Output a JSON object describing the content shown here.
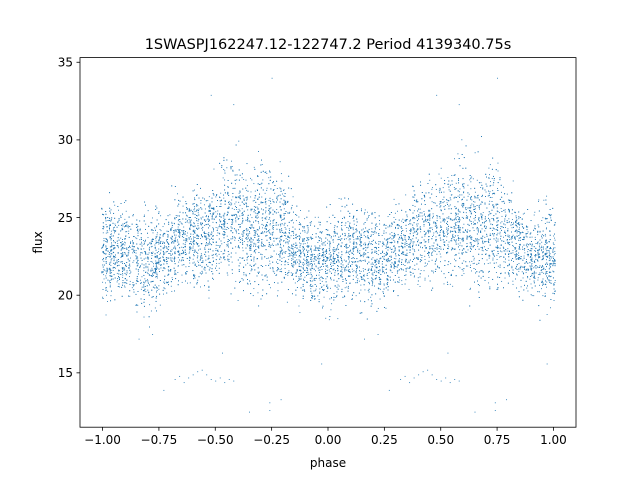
{
  "chart_data": {
    "type": "scatter",
    "title": "1SWASPJ162247.12-122747.2 Period 4139340.75s",
    "xlabel": "phase",
    "ylabel": "flux",
    "xlim": [
      -1.1,
      1.1
    ],
    "ylim": [
      11.5,
      35.3
    ],
    "x_ticks": [
      -1.0,
      -0.75,
      -0.5,
      -0.25,
      0.0,
      0.25,
      0.5,
      0.75,
      1.0
    ],
    "x_tick_labels": [
      "−1.00",
      "−0.75",
      "−0.50",
      "−0.25",
      "0.00",
      "0.25",
      "0.50",
      "0.75",
      "1.00"
    ],
    "y_ticks": [
      15,
      20,
      25,
      30,
      35
    ],
    "y_tick_labels": [
      "15",
      "20",
      "25",
      "30",
      "35"
    ],
    "grid": false,
    "marker_color": "#1f77b4",
    "series": [
      {
        "x": [
          -1.0,
          -0.95,
          -0.9,
          -0.85,
          -0.8,
          -0.75,
          -0.7,
          -0.65,
          -0.6,
          -0.55,
          -0.5,
          -0.45,
          -0.4,
          -0.35,
          -0.3,
          -0.25,
          -0.2,
          -0.15,
          -0.1,
          -0.05,
          0.0,
          0.05,
          0.1,
          0.15,
          0.2,
          0.25,
          0.3,
          0.35,
          0.4,
          0.45,
          0.5,
          0.55,
          0.6,
          0.65,
          0.7,
          0.75,
          0.8,
          0.85,
          0.9,
          0.95,
          1.0
        ],
        "y_median": [
          22.5,
          23.0,
          22.8,
          22.3,
          22.0,
          22.5,
          23.2,
          23.5,
          24.0,
          24.0,
          24.2,
          24.8,
          25.0,
          24.0,
          24.8,
          24.5,
          24.0,
          23.0,
          22.5,
          22.3,
          22.0,
          22.5,
          23.0,
          22.8,
          22.3,
          22.5,
          23.0,
          23.5,
          24.0,
          24.0,
          24.3,
          24.8,
          25.0,
          24.0,
          24.8,
          24.5,
          24.0,
          23.0,
          22.5,
          22.5,
          22.5
        ],
        "y_spread": [
          3.5,
          3.0,
          3.0,
          3.5,
          3.5,
          3.0,
          3.0,
          3.0,
          3.5,
          3.5,
          3.5,
          4.0,
          4.5,
          4.0,
          4.5,
          4.0,
          3.5,
          3.0,
          3.0,
          3.0,
          3.0,
          3.5,
          3.5,
          3.5,
          3.0,
          3.0,
          3.0,
          3.0,
          3.5,
          3.5,
          3.5,
          4.0,
          4.5,
          4.0,
          4.5,
          4.0,
          3.5,
          3.0,
          3.0,
          3.0,
          3.5
        ]
      }
    ],
    "outlier_points": [
      {
        "x": -0.68,
        "y": 14.6
      },
      {
        "x": -0.66,
        "y": 14.8
      },
      {
        "x": -0.64,
        "y": 14.4
      },
      {
        "x": -0.62,
        "y": 14.7
      },
      {
        "x": -0.6,
        "y": 14.9
      },
      {
        "x": -0.58,
        "y": 15.1
      },
      {
        "x": -0.56,
        "y": 15.2
      },
      {
        "x": -0.54,
        "y": 14.9
      },
      {
        "x": -0.52,
        "y": 14.6
      },
      {
        "x": -0.5,
        "y": 14.5
      },
      {
        "x": -0.48,
        "y": 14.7
      },
      {
        "x": -0.46,
        "y": 14.4
      },
      {
        "x": -0.44,
        "y": 14.6
      },
      {
        "x": -0.42,
        "y": 14.5
      },
      {
        "x": -0.73,
        "y": 13.9
      },
      {
        "x": -0.26,
        "y": 12.6
      },
      {
        "x": -0.26,
        "y": 13.1
      },
      {
        "x": -0.21,
        "y": 13.3
      },
      {
        "x": -0.47,
        "y": 16.3
      },
      {
        "x": -0.35,
        "y": 12.5
      },
      {
        "x": 0.32,
        "y": 14.6
      },
      {
        "x": 0.34,
        "y": 14.8
      },
      {
        "x": 0.36,
        "y": 14.4
      },
      {
        "x": 0.38,
        "y": 14.7
      },
      {
        "x": 0.4,
        "y": 14.9
      },
      {
        "x": 0.42,
        "y": 15.1
      },
      {
        "x": 0.44,
        "y": 15.2
      },
      {
        "x": 0.46,
        "y": 14.9
      },
      {
        "x": 0.48,
        "y": 14.6
      },
      {
        "x": 0.5,
        "y": 14.5
      },
      {
        "x": 0.52,
        "y": 14.7
      },
      {
        "x": 0.54,
        "y": 14.4
      },
      {
        "x": 0.56,
        "y": 14.6
      },
      {
        "x": 0.58,
        "y": 14.5
      },
      {
        "x": 0.27,
        "y": 13.9
      },
      {
        "x": 0.74,
        "y": 12.6
      },
      {
        "x": 0.74,
        "y": 13.1
      },
      {
        "x": 0.79,
        "y": 13.3
      },
      {
        "x": 0.53,
        "y": 16.3
      },
      {
        "x": 0.65,
        "y": 12.5
      },
      {
        "x": -0.84,
        "y": 17.2
      },
      {
        "x": -0.78,
        "y": 17.5
      },
      {
        "x": 0.16,
        "y": 17.2
      },
      {
        "x": 0.22,
        "y": 17.5
      },
      {
        "x": -0.25,
        "y": 34.0
      },
      {
        "x": 0.75,
        "y": 34.0
      },
      {
        "x": -0.52,
        "y": 32.9
      },
      {
        "x": 0.48,
        "y": 32.9
      },
      {
        "x": 0.97,
        "y": 15.6
      },
      {
        "x": -0.03,
        "y": 15.6
      },
      {
        "x": 0.58,
        "y": 32.3
      },
      {
        "x": -0.42,
        "y": 32.3
      }
    ]
  }
}
